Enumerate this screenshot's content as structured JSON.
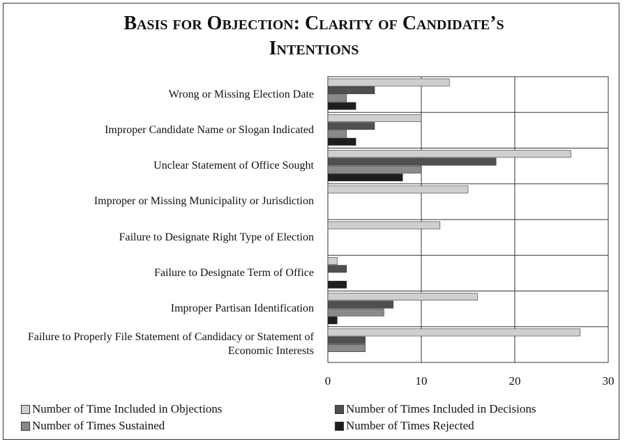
{
  "chart_data": {
    "type": "bar",
    "orientation": "horizontal",
    "title": "Basis for Objection: Clarity of Candidate’s Intentions",
    "categories": [
      "Wrong or Missing Election Date",
      "Improper Candidate Name or Slogan Indicated",
      "Unclear Statement of Office Sought",
      "Improper or Missing Municipality or Jurisdiction",
      "Failure to Designate Right Type of Election",
      "Failure to Designate Term of Office",
      "Improper Partisan Identification",
      "Failure to Properly File Statement of Candidacy or Statement of Economic Interests"
    ],
    "series": [
      {
        "name": "Number of Time Included in Objections",
        "color": "#cfcfcf",
        "values": [
          13,
          10,
          26,
          15,
          12,
          1,
          16,
          27
        ]
      },
      {
        "name": "Number of Times Included in Decisions",
        "color": "#505050",
        "values": [
          5,
          5,
          18,
          0,
          0,
          2,
          7,
          4
        ]
      },
      {
        "name": "Number of Times Sustained",
        "color": "#8a8a8a",
        "values": [
          2,
          2,
          10,
          0,
          0,
          0,
          6,
          4
        ]
      },
      {
        "name": "Number of Times Rejected",
        "color": "#1e1e1e",
        "values": [
          3,
          3,
          8,
          0,
          0,
          2,
          1,
          0
        ]
      }
    ],
    "xlim": [
      0,
      30
    ],
    "xticks": [
      0,
      10,
      20,
      30
    ],
    "grid": true,
    "legend": "bottom"
  }
}
